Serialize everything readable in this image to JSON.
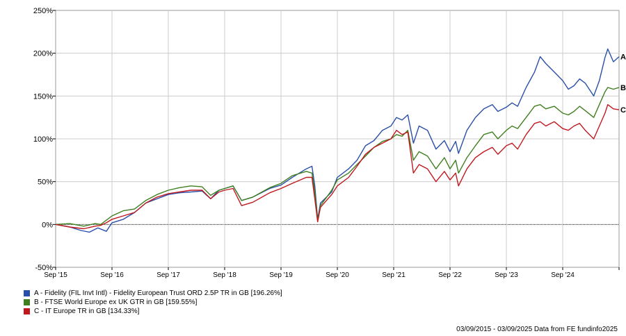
{
  "chart_data": {
    "type": "line",
    "yaxis": {
      "min": -50,
      "max": 250,
      "ticks": [
        "250%",
        "200%",
        "150%",
        "100%",
        "50%",
        "0%",
        "-50%"
      ],
      "tick_values": [
        250,
        200,
        150,
        100,
        50,
        0,
        -50
      ]
    },
    "xaxis": {
      "ticks": [
        "Sep '15",
        "Sep '16",
        "Sep '17",
        "Sep '18",
        "Sep '19",
        "Sep '20",
        "Sep '21",
        "Sep '22",
        "Sep '23",
        "Sep '24"
      ],
      "range_years": [
        0,
        10
      ]
    },
    "grid": true,
    "series": [
      {
        "name": "A - Fidelity (FIL Invt Intl) - Fidelity European Trust ORD 2.5P TR in GB [196.26%]",
        "end_label": "A",
        "color": "#2a4fa8",
        "points": [
          [
            0,
            0
          ],
          [
            0.25,
            -3
          ],
          [
            0.45,
            -7
          ],
          [
            0.6,
            -9
          ],
          [
            0.75,
            -4
          ],
          [
            0.9,
            -8
          ],
          [
            1.0,
            2
          ],
          [
            1.2,
            6
          ],
          [
            1.4,
            14
          ],
          [
            1.6,
            25
          ],
          [
            1.8,
            30
          ],
          [
            2.0,
            35
          ],
          [
            2.2,
            37
          ],
          [
            2.4,
            38
          ],
          [
            2.6,
            39
          ],
          [
            2.75,
            30
          ],
          [
            2.9,
            40
          ],
          [
            3.0,
            42
          ],
          [
            3.15,
            45
          ],
          [
            3.3,
            28
          ],
          [
            3.5,
            32
          ],
          [
            3.8,
            42
          ],
          [
            4.0,
            46
          ],
          [
            4.2,
            55
          ],
          [
            4.45,
            65
          ],
          [
            4.55,
            68
          ],
          [
            4.6,
            45
          ],
          [
            4.65,
            6
          ],
          [
            4.7,
            25
          ],
          [
            4.9,
            38
          ],
          [
            5.0,
            55
          ],
          [
            5.2,
            65
          ],
          [
            5.35,
            75
          ],
          [
            5.5,
            92
          ],
          [
            5.65,
            98
          ],
          [
            5.8,
            110
          ],
          [
            5.95,
            115
          ],
          [
            6.05,
            125
          ],
          [
            6.15,
            122
          ],
          [
            6.25,
            128
          ],
          [
            6.35,
            95
          ],
          [
            6.45,
            115
          ],
          [
            6.6,
            110
          ],
          [
            6.75,
            88
          ],
          [
            6.9,
            98
          ],
          [
            7.0,
            85
          ],
          [
            7.1,
            97
          ],
          [
            7.15,
            83
          ],
          [
            7.3,
            110
          ],
          [
            7.45,
            125
          ],
          [
            7.6,
            135
          ],
          [
            7.75,
            140
          ],
          [
            7.85,
            132
          ],
          [
            8.0,
            137
          ],
          [
            8.1,
            142
          ],
          [
            8.2,
            138
          ],
          [
            8.35,
            160
          ],
          [
            8.5,
            178
          ],
          [
            8.6,
            196
          ],
          [
            8.7,
            188
          ],
          [
            8.85,
            178
          ],
          [
            9.0,
            168
          ],
          [
            9.1,
            158
          ],
          [
            9.2,
            162
          ],
          [
            9.3,
            170
          ],
          [
            9.4,
            165
          ],
          [
            9.55,
            150
          ],
          [
            9.65,
            168
          ],
          [
            9.75,
            195
          ],
          [
            9.8,
            205
          ],
          [
            9.9,
            190
          ],
          [
            10.0,
            196
          ]
        ]
      },
      {
        "name": "B - FTSE World Europe ex UK GTR in GB [159.55%]",
        "end_label": "B",
        "color": "#3f7f1f",
        "points": [
          [
            0,
            0
          ],
          [
            0.25,
            1
          ],
          [
            0.5,
            -2
          ],
          [
            0.7,
            1
          ],
          [
            0.8,
            0
          ],
          [
            0.9,
            5
          ],
          [
            1.0,
            10
          ],
          [
            1.2,
            16
          ],
          [
            1.4,
            18
          ],
          [
            1.6,
            28
          ],
          [
            1.8,
            35
          ],
          [
            2.0,
            40
          ],
          [
            2.2,
            43
          ],
          [
            2.4,
            45
          ],
          [
            2.6,
            44
          ],
          [
            2.75,
            34
          ],
          [
            2.9,
            40
          ],
          [
            3.0,
            42
          ],
          [
            3.15,
            45
          ],
          [
            3.3,
            28
          ],
          [
            3.5,
            32
          ],
          [
            3.8,
            43
          ],
          [
            4.0,
            48
          ],
          [
            4.2,
            57
          ],
          [
            4.45,
            62
          ],
          [
            4.55,
            60
          ],
          [
            4.6,
            38
          ],
          [
            4.65,
            5
          ],
          [
            4.7,
            22
          ],
          [
            4.9,
            40
          ],
          [
            5.0,
            52
          ],
          [
            5.2,
            60
          ],
          [
            5.35,
            70
          ],
          [
            5.5,
            80
          ],
          [
            5.65,
            90
          ],
          [
            5.8,
            97
          ],
          [
            5.95,
            100
          ],
          [
            6.05,
            105
          ],
          [
            6.15,
            103
          ],
          [
            6.25,
            110
          ],
          [
            6.35,
            75
          ],
          [
            6.45,
            85
          ],
          [
            6.6,
            80
          ],
          [
            6.75,
            65
          ],
          [
            6.9,
            78
          ],
          [
            7.0,
            65
          ],
          [
            7.1,
            75
          ],
          [
            7.15,
            60
          ],
          [
            7.3,
            78
          ],
          [
            7.45,
            92
          ],
          [
            7.6,
            105
          ],
          [
            7.75,
            108
          ],
          [
            7.85,
            100
          ],
          [
            8.0,
            110
          ],
          [
            8.1,
            115
          ],
          [
            8.2,
            112
          ],
          [
            8.35,
            125
          ],
          [
            8.5,
            138
          ],
          [
            8.6,
            140
          ],
          [
            8.7,
            135
          ],
          [
            8.85,
            138
          ],
          [
            9.0,
            130
          ],
          [
            9.1,
            128
          ],
          [
            9.2,
            132
          ],
          [
            9.3,
            138
          ],
          [
            9.4,
            133
          ],
          [
            9.55,
            125
          ],
          [
            9.65,
            140
          ],
          [
            9.75,
            155
          ],
          [
            9.8,
            160
          ],
          [
            9.9,
            158
          ],
          [
            10.0,
            160
          ]
        ]
      },
      {
        "name": "C - IT Europe TR in GB [134.33%]",
        "end_label": "C",
        "color": "#c0181f",
        "points": [
          [
            0,
            0
          ],
          [
            0.25,
            -3
          ],
          [
            0.5,
            -5
          ],
          [
            0.7,
            -2
          ],
          [
            0.8,
            -1
          ],
          [
            0.9,
            2
          ],
          [
            1.0,
            6
          ],
          [
            1.2,
            10
          ],
          [
            1.4,
            14
          ],
          [
            1.6,
            25
          ],
          [
            1.8,
            32
          ],
          [
            2.0,
            36
          ],
          [
            2.2,
            38
          ],
          [
            2.4,
            40
          ],
          [
            2.6,
            40
          ],
          [
            2.75,
            30
          ],
          [
            2.9,
            38
          ],
          [
            3.0,
            40
          ],
          [
            3.15,
            42
          ],
          [
            3.3,
            22
          ],
          [
            3.5,
            26
          ],
          [
            3.8,
            37
          ],
          [
            4.0,
            42
          ],
          [
            4.2,
            48
          ],
          [
            4.45,
            55
          ],
          [
            4.55,
            55
          ],
          [
            4.6,
            30
          ],
          [
            4.65,
            3
          ],
          [
            4.7,
            20
          ],
          [
            4.9,
            35
          ],
          [
            5.0,
            45
          ],
          [
            5.2,
            55
          ],
          [
            5.35,
            68
          ],
          [
            5.5,
            82
          ],
          [
            5.65,
            90
          ],
          [
            5.8,
            95
          ],
          [
            5.95,
            100
          ],
          [
            6.05,
            110
          ],
          [
            6.15,
            105
          ],
          [
            6.25,
            108
          ],
          [
            6.35,
            60
          ],
          [
            6.45,
            70
          ],
          [
            6.6,
            65
          ],
          [
            6.75,
            50
          ],
          [
            6.9,
            62
          ],
          [
            7.0,
            52
          ],
          [
            7.1,
            60
          ],
          [
            7.15,
            45
          ],
          [
            7.3,
            65
          ],
          [
            7.45,
            78
          ],
          [
            7.6,
            85
          ],
          [
            7.75,
            90
          ],
          [
            7.85,
            82
          ],
          [
            8.0,
            92
          ],
          [
            8.1,
            95
          ],
          [
            8.2,
            88
          ],
          [
            8.35,
            105
          ],
          [
            8.5,
            118
          ],
          [
            8.6,
            120
          ],
          [
            8.7,
            115
          ],
          [
            8.85,
            120
          ],
          [
            9.0,
            112
          ],
          [
            9.1,
            110
          ],
          [
            9.2,
            115
          ],
          [
            9.3,
            118
          ],
          [
            9.4,
            110
          ],
          [
            9.55,
            100
          ],
          [
            9.65,
            115
          ],
          [
            9.75,
            130
          ],
          [
            9.8,
            140
          ],
          [
            9.9,
            135
          ],
          [
            10.0,
            134
          ]
        ]
      }
    ]
  },
  "footer": "03/09/2015 - 03/09/2025 Data from FE fundinfo2025"
}
